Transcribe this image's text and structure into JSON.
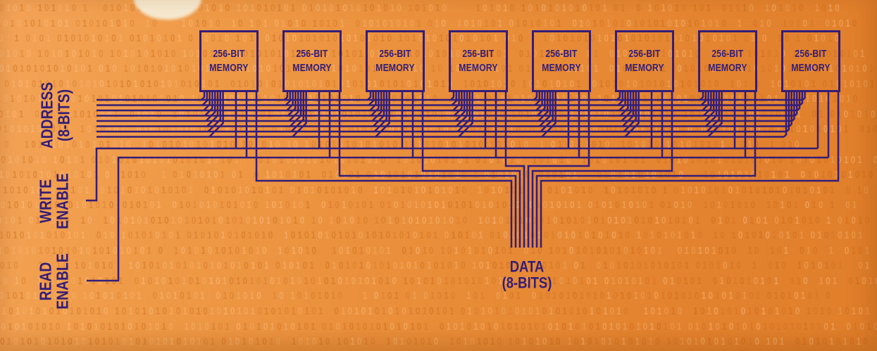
{
  "diagram": {
    "type": "circuit-diagram",
    "description": "Eight 256-bit memory chips sharing an 8-bit address bus, write/read enable lines and an 8-bit data bus",
    "labels": {
      "address": {
        "line1": "ADDRESS",
        "line2": "(8-BITS)"
      },
      "write": {
        "line1": "WRITE",
        "line2": "ENABLE"
      },
      "read": {
        "line1": "READ",
        "line2": "ENABLE"
      },
      "data": {
        "line1": "DATA",
        "line2": "(8-BITS)"
      }
    },
    "chips": [
      {
        "line1": "256-BIT",
        "line2": "MEMORY"
      },
      {
        "line1": "256-BIT",
        "line2": "MEMORY"
      },
      {
        "line1": "256-BIT",
        "line2": "MEMORY"
      },
      {
        "line1": "256-BIT",
        "line2": "MEMORY"
      },
      {
        "line1": "256-BIT",
        "line2": "MEMORY"
      },
      {
        "line1": "256-BIT",
        "line2": "MEMORY"
      },
      {
        "line1": "256-BIT",
        "line2": "MEMORY"
      },
      {
        "line1": "256-BIT",
        "line2": "MEMORY"
      }
    ],
    "buses": {
      "address_bits": 8,
      "data_bits": 8,
      "chip_count": 8
    },
    "background_pattern_chars": "10",
    "colors": {
      "ink": "#331d78",
      "bg_light": "#f4a458",
      "bg_dark": "#e07e2a",
      "pattern_dark": "rgba(193,97,18,0.38)",
      "pattern_light": "rgba(255,206,150,0.40)",
      "blob": "#f6e9cf"
    }
  }
}
